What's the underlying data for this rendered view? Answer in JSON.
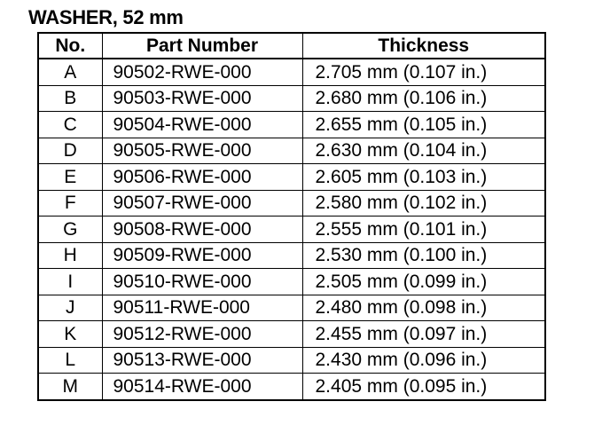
{
  "title": "WASHER, 52 mm",
  "table": {
    "headers": {
      "no": "No.",
      "part_number": "Part Number",
      "thickness": "Thickness"
    },
    "rows": [
      {
        "no": "A",
        "part_number": "90502-RWE-000",
        "thickness": "2.705 mm (0.107 in.)"
      },
      {
        "no": "B",
        "part_number": "90503-RWE-000",
        "thickness": "2.680 mm (0.106 in.)"
      },
      {
        "no": "C",
        "part_number": "90504-RWE-000",
        "thickness": "2.655 mm (0.105 in.)"
      },
      {
        "no": "D",
        "part_number": "90505-RWE-000",
        "thickness": "2.630 mm (0.104 in.)"
      },
      {
        "no": "E",
        "part_number": "90506-RWE-000",
        "thickness": "2.605 mm (0.103 in.)"
      },
      {
        "no": "F",
        "part_number": "90507-RWE-000",
        "thickness": "2.580 mm (0.102 in.)"
      },
      {
        "no": "G",
        "part_number": "90508-RWE-000",
        "thickness": "2.555 mm (0.101 in.)"
      },
      {
        "no": "H",
        "part_number": "90509-RWE-000",
        "thickness": "2.530 mm (0.100 in.)"
      },
      {
        "no": "I",
        "part_number": "90510-RWE-000",
        "thickness": "2.505 mm (0.099 in.)"
      },
      {
        "no": "J",
        "part_number": "90511-RWE-000",
        "thickness": "2.480 mm (0.098 in.)"
      },
      {
        "no": "K",
        "part_number": "90512-RWE-000",
        "thickness": "2.455 mm (0.097 in.)"
      },
      {
        "no": "L",
        "part_number": "90513-RWE-000",
        "thickness": "2.430 mm (0.096 in.)"
      },
      {
        "no": "M",
        "part_number": "90514-RWE-000",
        "thickness": "2.405 mm (0.095 in.)"
      }
    ]
  }
}
